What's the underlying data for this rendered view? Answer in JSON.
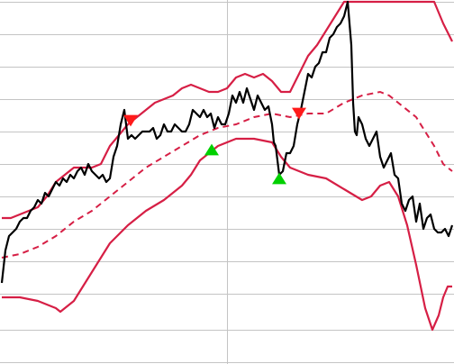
{
  "chart_data": {
    "type": "line",
    "title": "",
    "xlabel": "",
    "ylabel": "",
    "grid": true,
    "legend": "none",
    "xlim": [
      0,
      500
    ],
    "ylim": [
      0,
      100
    ],
    "hgrid_values": [
      100,
      91,
      82,
      73,
      64,
      55,
      46,
      37,
      28,
      19,
      9,
      0
    ],
    "vgrid_values": [
      250
    ],
    "colors": {
      "price": "#000000",
      "bands": "#d61f45",
      "grid": "#c4c4c4",
      "buy_signal": "#00d000",
      "sell_signal": "#ff1a1a"
    },
    "series": [
      {
        "role": "price",
        "x": [
          0,
          4,
          8,
          12,
          16,
          20,
          24,
          28,
          32,
          36,
          40,
          44,
          48,
          52,
          56,
          60,
          64,
          68,
          72,
          76,
          80,
          84,
          88,
          92,
          96,
          100,
          104,
          108,
          112,
          116,
          120,
          124,
          128,
          132,
          136,
          140,
          144,
          148,
          152,
          156,
          160,
          164,
          168,
          172,
          176,
          180,
          184,
          188,
          192,
          196,
          200,
          204,
          208,
          212,
          216,
          220,
          224,
          228,
          232,
          236,
          240,
          244,
          248,
          252,
          256,
          260,
          264,
          268,
          272,
          276,
          280,
          284,
          288,
          292,
          296,
          300,
          302,
          304,
          306,
          308,
          312,
          316,
          320,
          324,
          328,
          332,
          336,
          340,
          344,
          348,
          352,
          356,
          360,
          364,
          368,
          372,
          376,
          380,
          384,
          388,
          390,
          392,
          394,
          396,
          400,
          404,
          408,
          412,
          416,
          420,
          424,
          428,
          432,
          436,
          440,
          444,
          448,
          452,
          456,
          460,
          464,
          468,
          472,
          476,
          480,
          484,
          488,
          492,
          496,
          500
        ],
        "y": [
          22,
          31,
          35,
          36,
          37,
          39,
          40,
          40,
          42,
          43,
          45,
          44,
          47,
          46,
          48,
          50,
          49,
          51,
          50,
          52,
          51,
          53,
          54,
          52,
          55,
          53,
          52,
          51,
          52,
          50,
          51,
          57,
          60,
          66,
          70,
          62,
          63,
          62,
          63,
          64,
          64,
          64,
          65,
          62,
          63,
          66,
          64,
          64,
          66,
          65,
          64,
          64,
          66,
          70,
          69,
          68,
          70,
          68,
          69,
          65,
          68,
          66,
          66,
          69,
          74,
          72,
          75,
          72,
          76,
          73,
          70,
          74,
          72,
          70,
          71,
          66,
          61,
          60,
          56,
          52,
          53,
          58,
          58,
          60,
          66,
          70,
          75,
          80,
          79,
          82,
          83,
          86,
          86,
          90,
          91,
          93,
          94,
          96,
          100,
          88,
          72,
          64,
          63,
          68,
          66,
          62,
          60,
          62,
          64,
          57,
          54,
          56,
          58,
          52,
          51,
          44,
          42,
          45,
          46,
          39,
          44,
          37,
          40,
          41,
          37,
          36,
          36,
          37,
          35,
          38
        ]
      },
      {
        "role": "upper-band",
        "x": [
          0,
          10,
          20,
          30,
          40,
          50,
          60,
          70,
          80,
          90,
          100,
          110,
          120,
          130,
          140,
          150,
          160,
          170,
          180,
          190,
          200,
          210,
          220,
          230,
          240,
          250,
          260,
          270,
          280,
          290,
          300,
          310,
          320,
          330,
          340,
          350,
          360,
          370,
          380,
          385,
          390,
          400,
          410,
          420,
          430,
          440,
          450,
          460,
          470,
          480,
          490,
          500
        ],
        "y": [
          40,
          40,
          41,
          42,
          43,
          46,
          50,
          52,
          54,
          54,
          54,
          55,
          60,
          63,
          66,
          68,
          70,
          72,
          73,
          74,
          76,
          77,
          76,
          75,
          75,
          76,
          79,
          80,
          79,
          80,
          78,
          75,
          75,
          80,
          85,
          88,
          92,
          96,
          100,
          100,
          100,
          100,
          100,
          100,
          100,
          100,
          100,
          100,
          100,
          100,
          94,
          89
        ]
      },
      {
        "role": "middle-band",
        "x": [
          0,
          20,
          40,
          60,
          80,
          100,
          120,
          140,
          160,
          180,
          200,
          220,
          240,
          260,
          280,
          300,
          320,
          340,
          360,
          380,
          400,
          420,
          430,
          440,
          460,
          480,
          490,
          500
        ],
        "y": [
          29,
          30,
          32,
          35,
          39,
          42,
          46,
          50,
          54,
          57,
          60,
          63,
          65,
          66,
          68,
          69,
          68,
          69,
          69,
          72,
          74,
          75,
          74,
          72,
          68,
          60,
          55,
          53
        ]
      },
      {
        "role": "lower-band",
        "x": [
          0,
          20,
          40,
          60,
          65,
          70,
          80,
          100,
          120,
          140,
          160,
          180,
          200,
          210,
          220,
          240,
          260,
          280,
          300,
          310,
          320,
          340,
          360,
          380,
          400,
          410,
          420,
          430,
          440,
          450,
          460,
          470,
          478,
          485,
          490,
          495,
          500
        ],
        "y": [
          18,
          18,
          17,
          15,
          14,
          15,
          17,
          25,
          33,
          38,
          42,
          45,
          49,
          52,
          56,
          60,
          62,
          62,
          61,
          57,
          54,
          52,
          51,
          48,
          45,
          46,
          49,
          50,
          46,
          38,
          27,
          15,
          9,
          13,
          18,
          21,
          21
        ]
      }
    ],
    "signals": [
      {
        "type": "sell",
        "x": 143,
        "y": 67
      },
      {
        "type": "buy",
        "x": 233,
        "y": 59
      },
      {
        "type": "buy",
        "x": 308,
        "y": 51
      },
      {
        "type": "sell",
        "x": 330,
        "y": 69
      }
    ]
  }
}
